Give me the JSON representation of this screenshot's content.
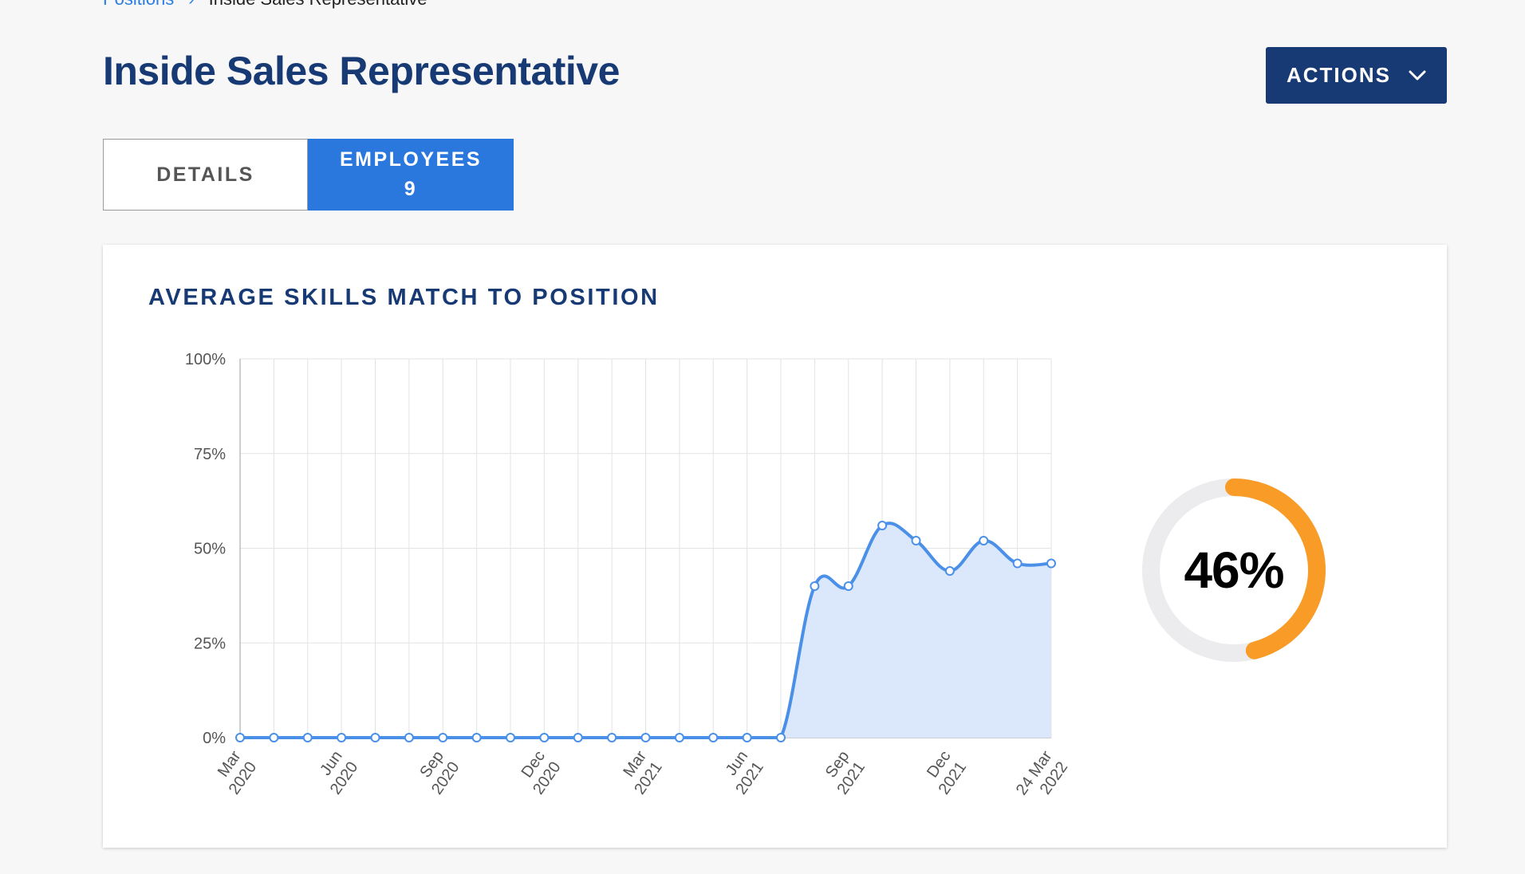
{
  "breadcrumb": {
    "parent": "Positions",
    "separator": "›",
    "current": "Inside Sales Representative"
  },
  "page": {
    "title": "Inside Sales Representative"
  },
  "actions": {
    "label": "ACTIONS",
    "icon": "chevron-down-icon"
  },
  "tabs": [
    {
      "label": "DETAILS",
      "count": "",
      "active": false
    },
    {
      "label": "EMPLOYEES",
      "count": "9",
      "active": true
    }
  ],
  "card": {
    "title": "AVERAGE SKILLS MATCH TO POSITION"
  },
  "colors": {
    "primary": "#173a74",
    "accent": "#2a77de",
    "line": "#4a90e8",
    "fill": "#dbe8fb",
    "gauge": "#f89c27",
    "gauge_track": "#ececef"
  },
  "gauge": {
    "value": 46,
    "label": "46%"
  },
  "chart_data": {
    "type": "area",
    "title": "",
    "xlabel": "",
    "ylabel": "",
    "ylim": [
      0,
      100
    ],
    "y_ticks": [
      "100%",
      "75%",
      "50%",
      "25%",
      "0%"
    ],
    "x_ticks": [
      {
        "label": [
          "Mar",
          "2020"
        ],
        "x": 0
      },
      {
        "label": [
          "Jun",
          "2020"
        ],
        "x": 3
      },
      {
        "label": [
          "Sep",
          "2020"
        ],
        "x": 6
      },
      {
        "label": [
          "Dec",
          "2020"
        ],
        "x": 9
      },
      {
        "label": [
          "Mar",
          "2021"
        ],
        "x": 12
      },
      {
        "label": [
          "Jun",
          "2021"
        ],
        "x": 15
      },
      {
        "label": [
          "Sep",
          "2021"
        ],
        "x": 18
      },
      {
        "label": [
          "Dec",
          "2021"
        ],
        "x": 21
      },
      {
        "label": [
          "24 Mar",
          "2022"
        ],
        "x": 24
      }
    ],
    "grid": true,
    "series": [
      {
        "values": [
          0,
          0,
          0,
          0,
          0,
          0,
          0,
          0,
          0,
          0,
          0,
          0,
          0,
          0,
          0,
          0,
          0,
          40,
          40,
          56,
          52,
          44,
          52,
          46,
          46
        ]
      }
    ]
  }
}
